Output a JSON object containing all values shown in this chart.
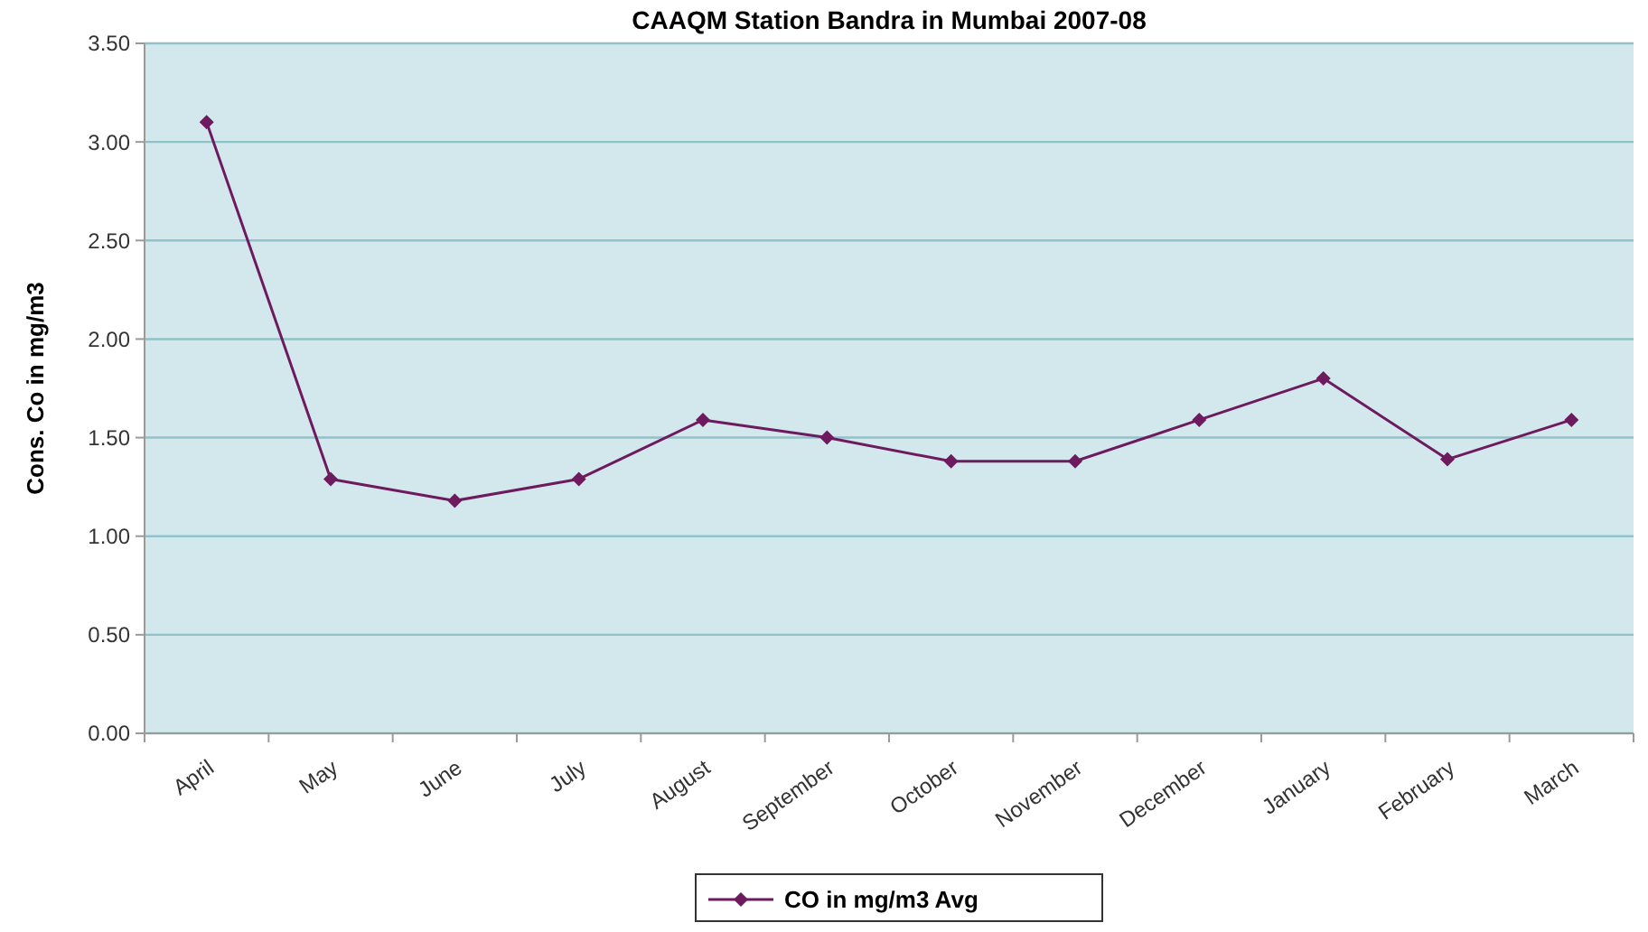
{
  "chart_data": {
    "type": "line",
    "title": "CAAQM Station Bandra in Mumbai 2007-08",
    "ylabel": "Cons. Co in mg/m3",
    "categories": [
      "April",
      "May",
      "June",
      "July",
      "August",
      "September",
      "October",
      "November",
      "December",
      "January",
      "February",
      "March"
    ],
    "series": [
      {
        "name": "CO in mg/m3 Avg",
        "color": "#6e1a5e",
        "values": [
          3.1,
          1.29,
          1.18,
          1.29,
          1.59,
          1.5,
          1.38,
          1.38,
          1.59,
          1.8,
          1.39,
          1.59
        ]
      }
    ],
    "ylim": [
      0,
      3.5
    ],
    "yticks": [
      {
        "value": 0,
        "label": "0.00"
      },
      {
        "value": 0.5,
        "label": "0.50"
      },
      {
        "value": 1,
        "label": "1.00"
      },
      {
        "value": 1.5,
        "label": "1.50"
      },
      {
        "value": 2,
        "label": "2.00"
      },
      {
        "value": 2.5,
        "label": "2.50"
      },
      {
        "value": 3,
        "label": "3.00"
      },
      {
        "value": 3.5,
        "label": "3.50"
      }
    ],
    "grid": "y",
    "legend": "bottom",
    "marker": "diamond",
    "line_style": "solid"
  }
}
